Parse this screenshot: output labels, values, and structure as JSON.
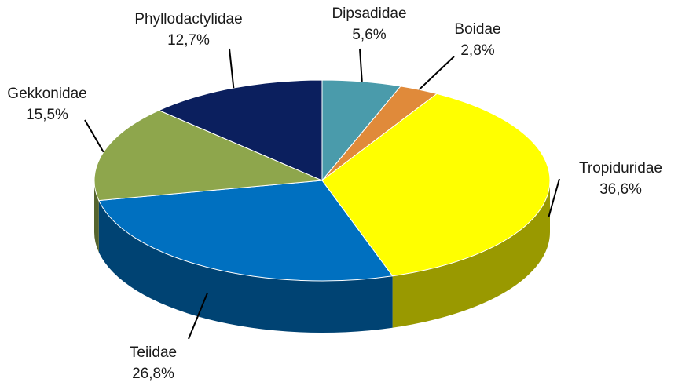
{
  "chart_data": {
    "type": "pie",
    "categories": [
      "Dipsadidae",
      "Boidae",
      "Tropiduridae",
      "Teiidae",
      "Gekkonidae",
      "Phyllodactylidae"
    ],
    "values": [
      5.6,
      2.8,
      36.6,
      26.8,
      15.5,
      12.7
    ],
    "value_labels": [
      "5,6%",
      "2,8%",
      "36,6%",
      "26,8%",
      "15,5%",
      "12,7%"
    ],
    "colors": [
      "#4a9bab",
      "#e08a3a",
      "#ffff00",
      "#0070c0",
      "#8ea64c",
      "#0b1f5e"
    ]
  }
}
